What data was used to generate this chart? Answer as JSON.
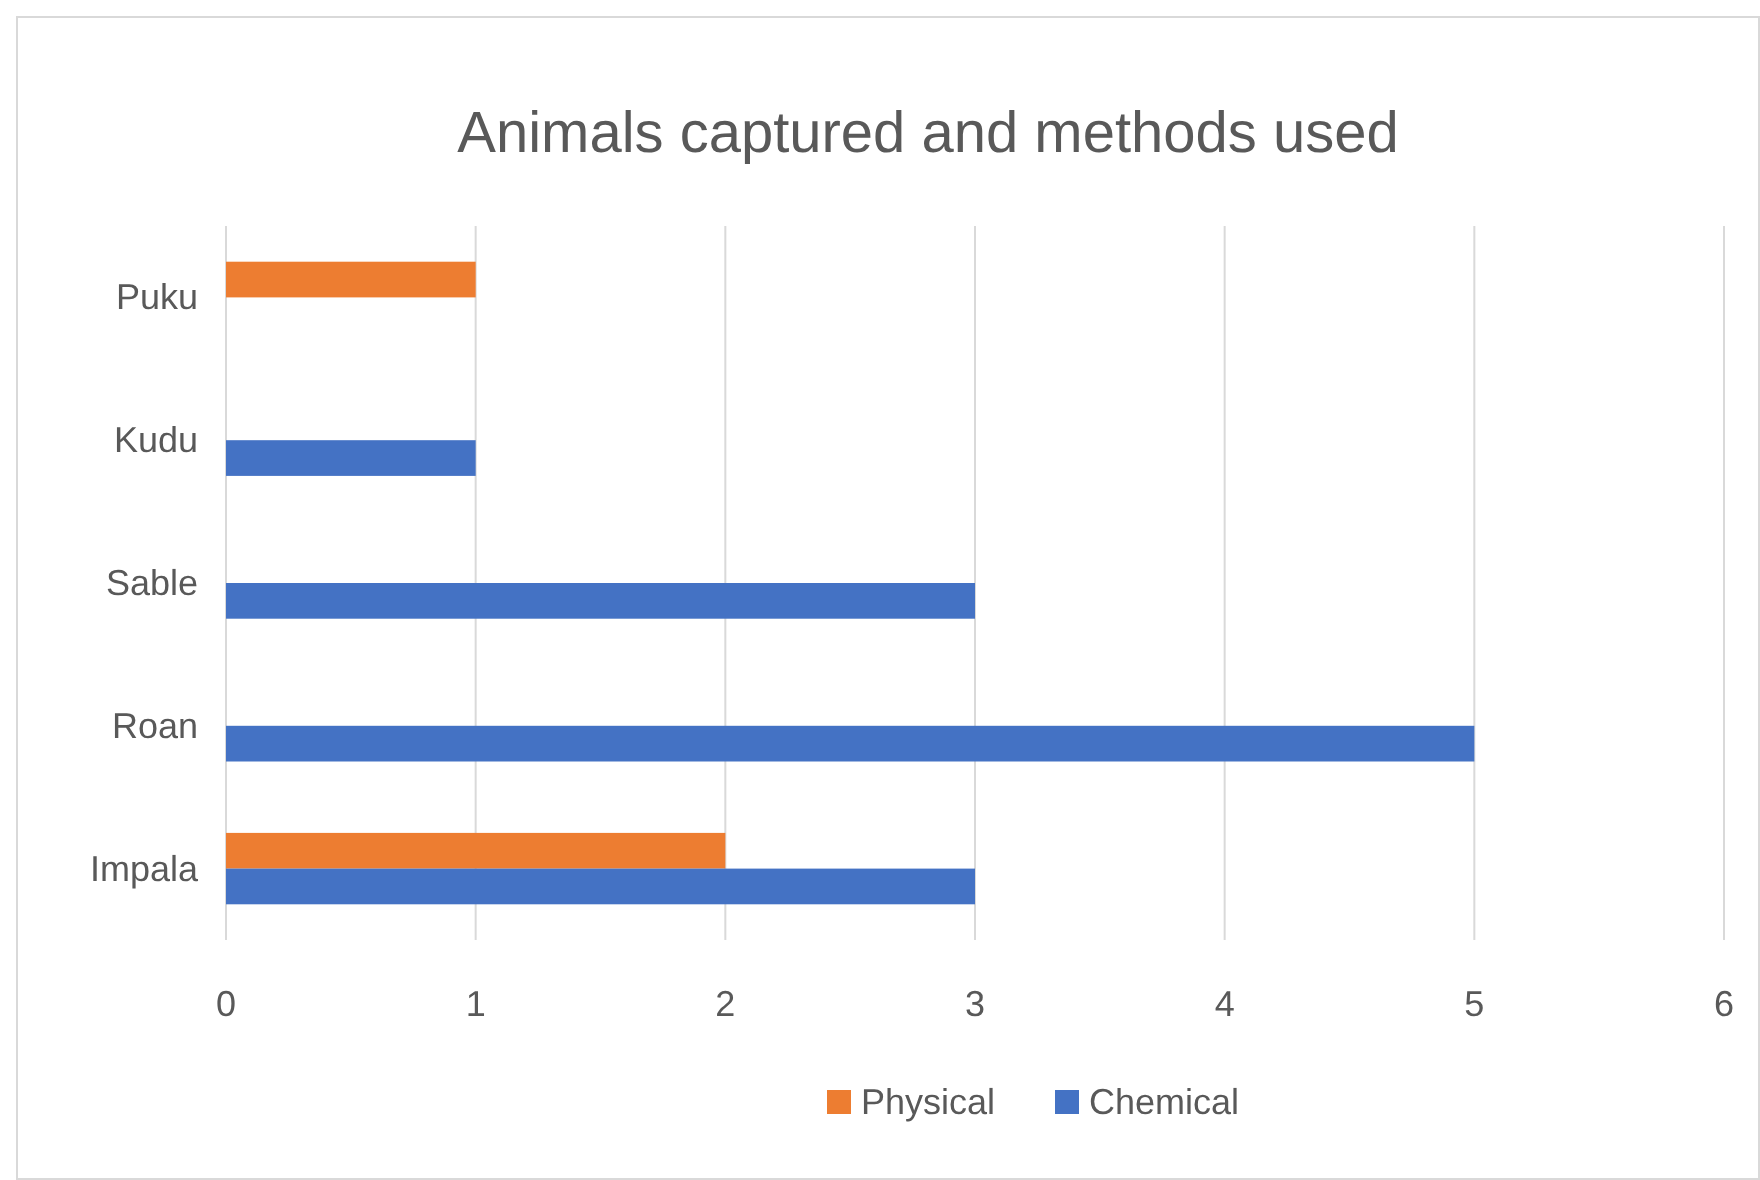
{
  "chart_data": {
    "type": "bar",
    "orientation": "horizontal",
    "title": "Animals captured and methods used",
    "categories": [
      "Puku",
      "Kudu",
      "Sable",
      "Roan",
      "Impala"
    ],
    "series": [
      {
        "name": "Physical",
        "color": "#ed7d31",
        "values": [
          1,
          null,
          null,
          null,
          2
        ]
      },
      {
        "name": "Chemical",
        "color": "#4472c4",
        "values": [
          null,
          1,
          3,
          5,
          3
        ]
      }
    ],
    "xlim": [
      0,
      6
    ],
    "xticks": [
      0,
      1,
      2,
      3,
      4,
      5,
      6
    ],
    "grid": "x",
    "legend": "bottom"
  }
}
